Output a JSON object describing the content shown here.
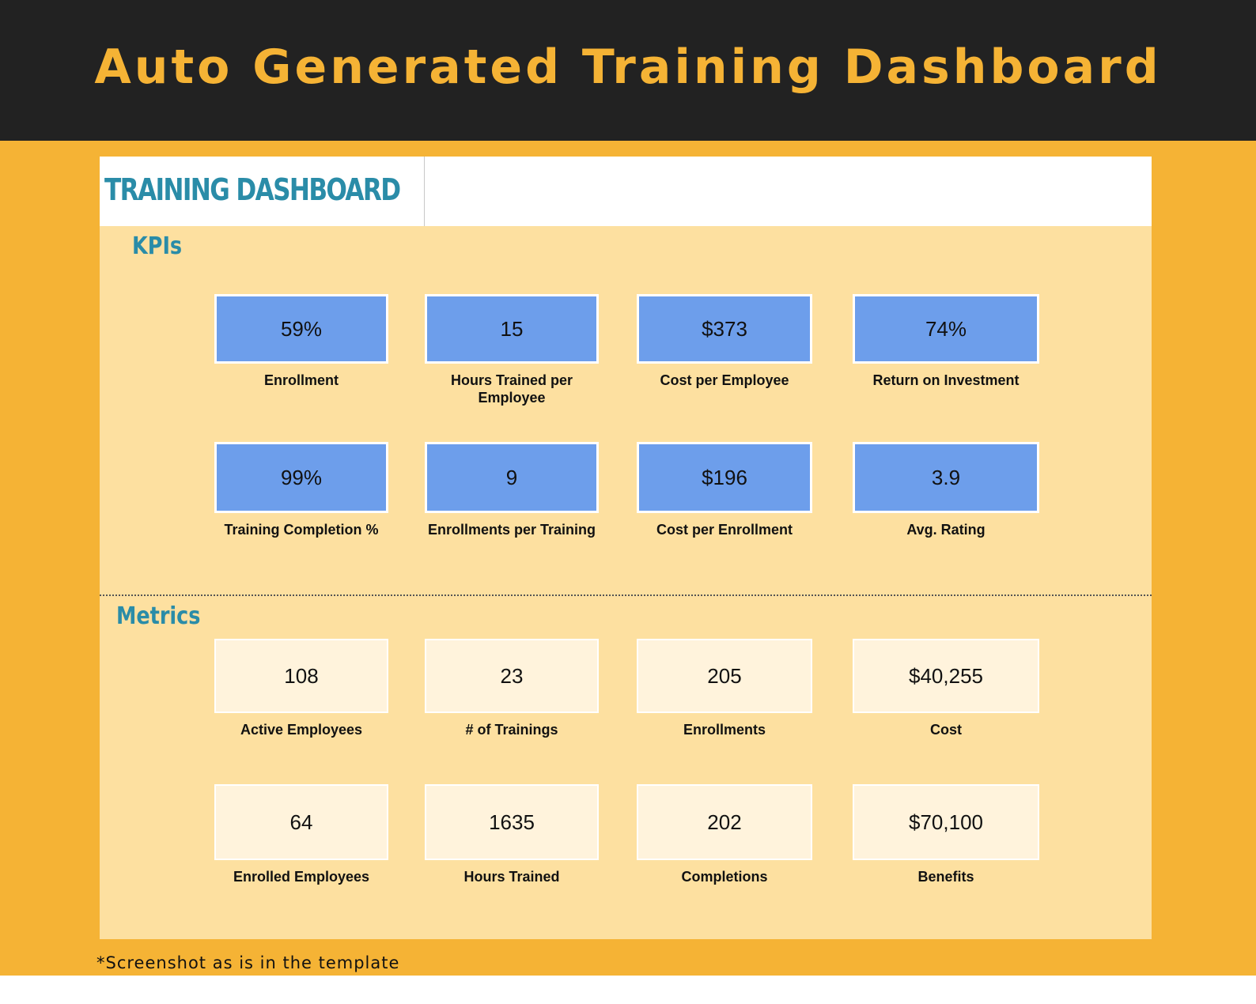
{
  "header": {
    "title": "Auto Generated Training Dashboard"
  },
  "panel": {
    "title": "TRAINING DASHBOARD"
  },
  "kpis": {
    "heading": "KPIs",
    "items": [
      {
        "value": "59%",
        "label": "Enrollment"
      },
      {
        "value": "15",
        "label": "Hours Trained per Employee"
      },
      {
        "value": "$373",
        "label": "Cost per Employee"
      },
      {
        "value": "74%",
        "label": "Return on Investment"
      },
      {
        "value": "99%",
        "label": "Training Completion %"
      },
      {
        "value": "9",
        "label": "Enrollments per Training"
      },
      {
        "value": "$196",
        "label": "Cost per Enrollment"
      },
      {
        "value": "3.9",
        "label": "Avg. Rating"
      }
    ]
  },
  "metrics": {
    "heading": "Metrics",
    "items": [
      {
        "value": "108",
        "label": "Active Employees"
      },
      {
        "value": "23",
        "label": "# of Trainings"
      },
      {
        "value": "205",
        "label": "Enrollments"
      },
      {
        "value": "$40,255",
        "label": "Cost"
      },
      {
        "value": "64",
        "label": "Enrolled Employees"
      },
      {
        "value": "1635",
        "label": "Hours Trained"
      },
      {
        "value": "202",
        "label": "Completions"
      },
      {
        "value": "$70,100",
        "label": "Benefits"
      }
    ]
  },
  "footnote": "*Screenshot as is in the template"
}
